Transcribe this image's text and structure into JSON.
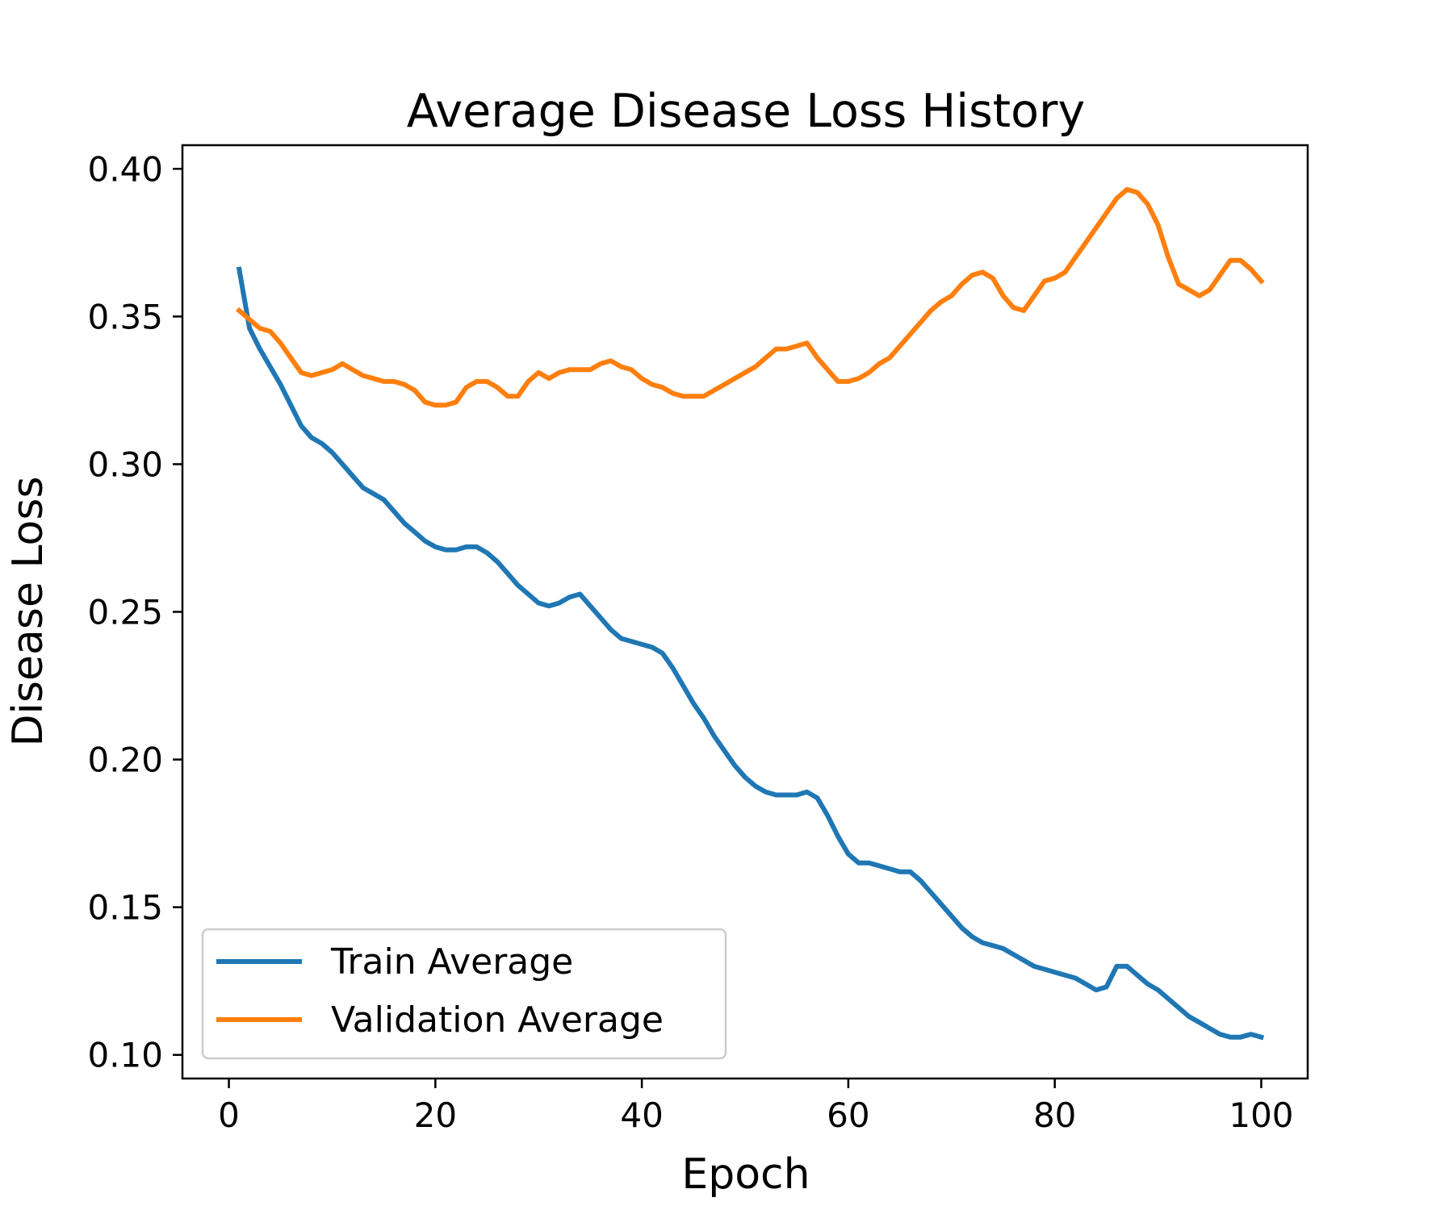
{
  "chart_data": {
    "type": "line",
    "title": "Average Disease Loss History",
    "xlabel": "Epoch",
    "ylabel": "Disease Loss",
    "xlim": [
      -4.5,
      104.5
    ],
    "ylim": [
      0.092,
      0.408
    ],
    "xticks": [
      0,
      20,
      40,
      60,
      80,
      100
    ],
    "yticks": [
      0.1,
      0.15,
      0.2,
      0.25,
      0.3,
      0.35,
      0.4
    ],
    "xtick_labels": [
      "0",
      "20",
      "40",
      "60",
      "80",
      "100"
    ],
    "ytick_labels": [
      "0.10",
      "0.15",
      "0.20",
      "0.25",
      "0.30",
      "0.35",
      "0.40"
    ],
    "grid": false,
    "legend_position": "lower-left",
    "x": [
      1,
      2,
      3,
      4,
      5,
      6,
      7,
      8,
      9,
      10,
      11,
      12,
      13,
      14,
      15,
      16,
      17,
      18,
      19,
      20,
      21,
      22,
      23,
      24,
      25,
      26,
      27,
      28,
      29,
      30,
      31,
      32,
      33,
      34,
      35,
      36,
      37,
      38,
      39,
      40,
      41,
      42,
      43,
      44,
      45,
      46,
      47,
      48,
      49,
      50,
      51,
      52,
      53,
      54,
      55,
      56,
      57,
      58,
      59,
      60,
      61,
      62,
      63,
      64,
      65,
      66,
      67,
      68,
      69,
      70,
      71,
      72,
      73,
      74,
      75,
      76,
      77,
      78,
      79,
      80,
      81,
      82,
      83,
      84,
      85,
      86,
      87,
      88,
      89,
      90,
      91,
      92,
      93,
      94,
      95,
      96,
      97,
      98,
      99,
      100
    ],
    "series": [
      {
        "name": "Train Average",
        "color": "#1f77b4",
        "values": [
          0.366,
          0.346,
          0.339,
          0.333,
          0.327,
          0.32,
          0.313,
          0.309,
          0.307,
          0.304,
          0.3,
          0.296,
          0.292,
          0.29,
          0.288,
          0.284,
          0.28,
          0.277,
          0.274,
          0.272,
          0.271,
          0.271,
          0.272,
          0.272,
          0.27,
          0.267,
          0.263,
          0.259,
          0.256,
          0.253,
          0.252,
          0.253,
          0.255,
          0.256,
          0.252,
          0.248,
          0.244,
          0.241,
          0.24,
          0.239,
          0.238,
          0.236,
          0.231,
          0.225,
          0.219,
          0.214,
          0.208,
          0.203,
          0.198,
          0.194,
          0.191,
          0.189,
          0.188,
          0.188,
          0.188,
          0.189,
          0.187,
          0.181,
          0.174,
          0.168,
          0.165,
          0.165,
          0.164,
          0.163,
          0.162,
          0.162,
          0.159,
          0.155,
          0.151,
          0.147,
          0.143,
          0.14,
          0.138,
          0.137,
          0.136,
          0.134,
          0.132,
          0.13,
          0.129,
          0.128,
          0.127,
          0.126,
          0.124,
          0.122,
          0.123,
          0.13,
          0.13,
          0.127,
          0.124,
          0.122,
          0.119,
          0.116,
          0.113,
          0.111,
          0.109,
          0.107,
          0.106,
          0.106,
          0.107,
          0.106
        ]
      },
      {
        "name": "Validation Average",
        "color": "#ff7f0e",
        "values": [
          0.352,
          0.349,
          0.346,
          0.345,
          0.341,
          0.336,
          0.331,
          0.33,
          0.331,
          0.332,
          0.334,
          0.332,
          0.33,
          0.329,
          0.328,
          0.328,
          0.327,
          0.325,
          0.321,
          0.32,
          0.32,
          0.321,
          0.326,
          0.328,
          0.328,
          0.326,
          0.323,
          0.323,
          0.328,
          0.331,
          0.329,
          0.331,
          0.332,
          0.332,
          0.332,
          0.334,
          0.335,
          0.333,
          0.332,
          0.329,
          0.327,
          0.326,
          0.324,
          0.323,
          0.323,
          0.323,
          0.325,
          0.327,
          0.329,
          0.331,
          0.333,
          0.336,
          0.339,
          0.339,
          0.34,
          0.341,
          0.336,
          0.332,
          0.328,
          0.328,
          0.329,
          0.331,
          0.334,
          0.336,
          0.34,
          0.344,
          0.348,
          0.352,
          0.355,
          0.357,
          0.361,
          0.364,
          0.365,
          0.363,
          0.357,
          0.353,
          0.352,
          0.357,
          0.362,
          0.363,
          0.365,
          0.37,
          0.375,
          0.38,
          0.385,
          0.39,
          0.393,
          0.392,
          0.388,
          0.381,
          0.37,
          0.361,
          0.359,
          0.357,
          0.359,
          0.364,
          0.369,
          0.369,
          0.366,
          0.362
        ]
      }
    ]
  }
}
